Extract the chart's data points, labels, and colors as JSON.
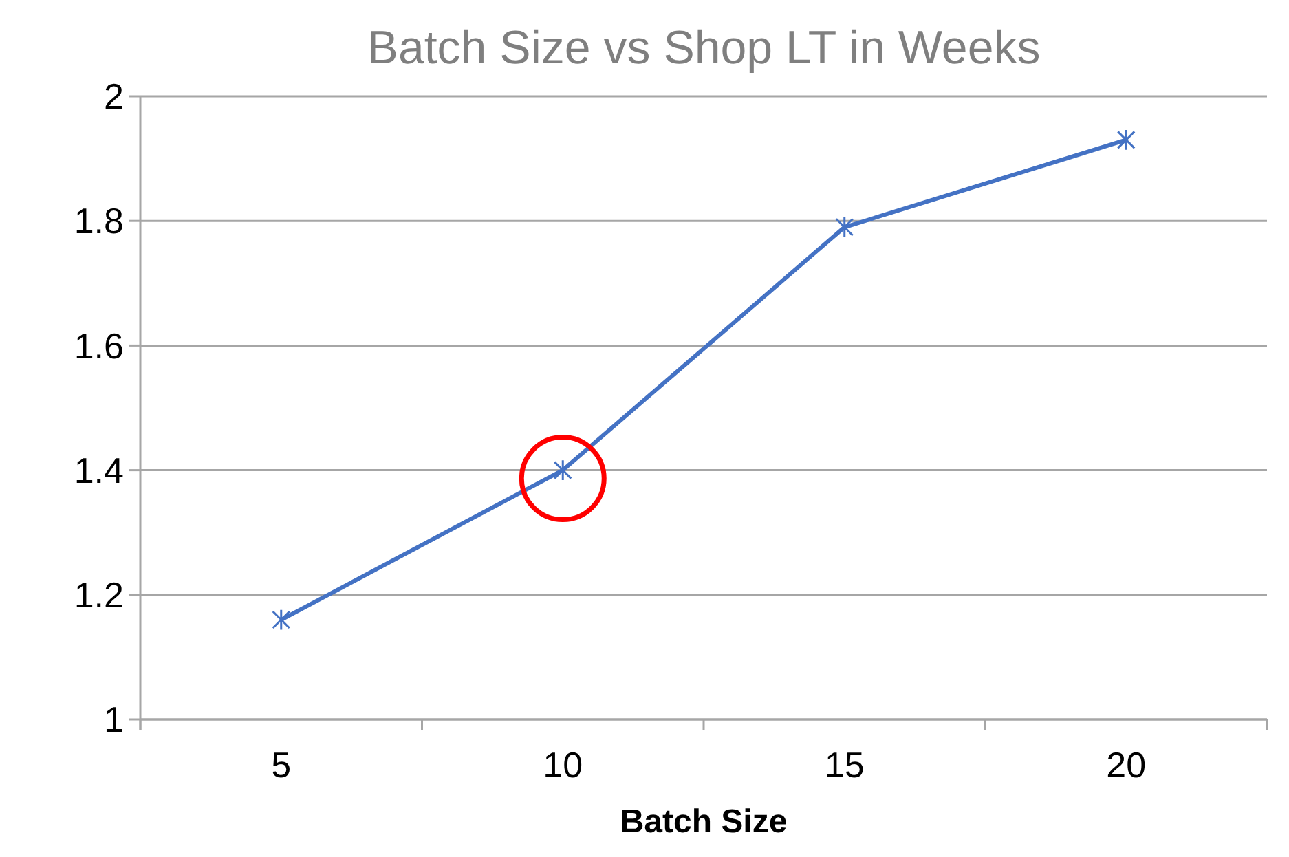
{
  "chart_data": {
    "type": "line",
    "title": "Batch Size vs Shop LT in Weeks",
    "xlabel": "Batch Size",
    "categories": [
      "5",
      "10",
      "15",
      "20"
    ],
    "series": [
      {
        "color": "#4472c4",
        "values": [
          1.16,
          1.4,
          1.79,
          1.93
        ]
      }
    ],
    "ylim": [
      1,
      2
    ],
    "yticks": [
      1,
      1.2,
      1.4,
      1.6,
      1.8,
      2
    ],
    "grid": "y",
    "marker": "cross",
    "line_style": "solid"
  }
}
